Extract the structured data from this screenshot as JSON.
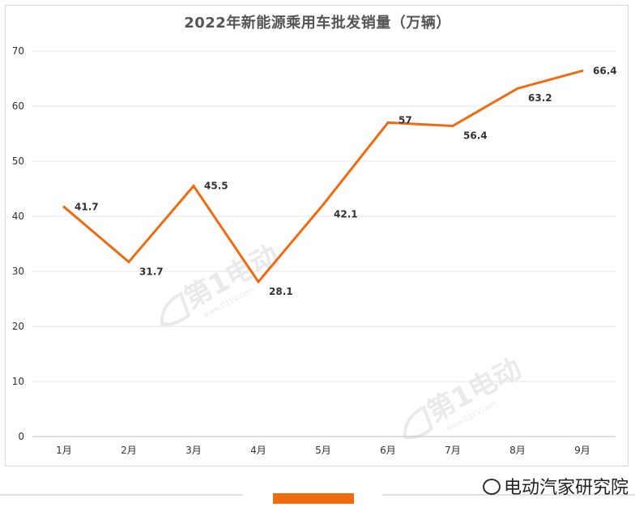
{
  "chart_data": {
    "type": "line",
    "title": "2022年新能源乘用车批发销量（万辆）",
    "categories": [
      "1月",
      "2月",
      "3月",
      "4月",
      "5月",
      "6月",
      "7月",
      "8月",
      "9月"
    ],
    "series": [
      {
        "values": [
          41.7,
          31.7,
          45.5,
          28.1,
          42.1,
          57,
          56.4,
          63.2,
          66.4
        ]
      }
    ],
    "data_labels": [
      "41.7",
      "31.7",
      "45.5",
      "28.1",
      "42.1",
      "57",
      "56.4",
      "63.2",
      "66.4"
    ],
    "yticks": [
      0,
      10,
      20,
      30,
      40,
      50,
      60,
      70
    ],
    "ylim": [
      0,
      70
    ],
    "grid": true,
    "legend": "none",
    "line_color": "#f06a10"
  },
  "watermark": {
    "text": "第1电动",
    "url": "www.D1EV.com"
  },
  "brand": {
    "text": "电动汽家研究院",
    "icon": "chat-bubble-icon"
  }
}
